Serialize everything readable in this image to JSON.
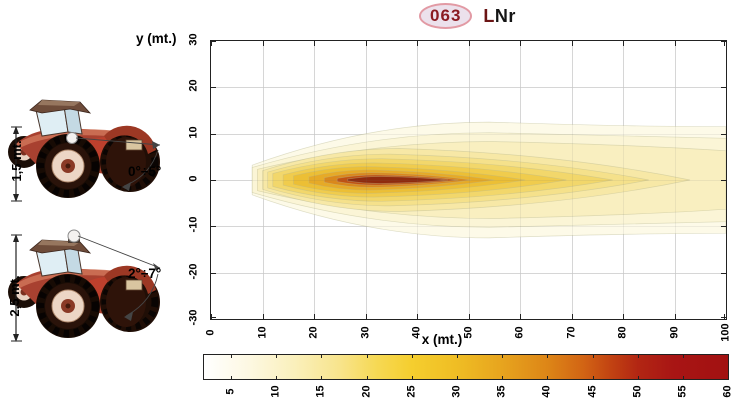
{
  "title": {
    "badge": "063",
    "code_l": "L",
    "code_rest": "Nr"
  },
  "colors": {
    "badge_text": "#8b1b22",
    "badge_bg": "#ece1ec",
    "badge_border": "#e29aa4",
    "grid": "#e3e3e3",
    "axis": "#222222",
    "peak": "#8f2b0e"
  },
  "left_panel": {
    "tractor_top": {
      "height_label": "1,5 mt.",
      "angle_label": "0°÷5°",
      "beacon": false
    },
    "tractor_bottom": {
      "height_label": "2,5 mt.",
      "angle_label": "2°÷7°",
      "beacon": true
    }
  },
  "chart": {
    "xlabel": "x (mt.)",
    "ylabel": "y (mt.)"
  },
  "chart_data": {
    "type": "heatmap",
    "title": "063 LNr",
    "xlabel": "x (mt.)",
    "ylabel": "y (mt.)",
    "xlim": [
      0,
      100
    ],
    "ylim": [
      -30,
      30
    ],
    "x_ticks": [
      0,
      10,
      20,
      30,
      40,
      50,
      60,
      70,
      80,
      90,
      100
    ],
    "y_ticks": [
      30,
      20,
      10,
      0,
      -10,
      -20,
      -30
    ],
    "grid": true,
    "legend_position": "colorbar-bottom",
    "peak": {
      "value_approx": 58,
      "x_range": [
        26,
        46
      ],
      "y": 0
    },
    "contours": [
      {
        "level": 2,
        "x_start": 8,
        "x_end": 100,
        "hw_start": 3.2,
        "hw_max": 12.5,
        "hw_end": 11.5,
        "color": "#fdfae8"
      },
      {
        "level": 5,
        "x_start": 8,
        "x_end": 100,
        "hw_start": 2.7,
        "hw_max": 10.2,
        "hw_end": 9.0,
        "color": "#fbf5d6"
      },
      {
        "level": 8,
        "x_start": 9,
        "x_end": 100,
        "hw_start": 2.3,
        "hw_max": 8.3,
        "hw_end": 6.3,
        "color": "#f9efc0"
      },
      {
        "level": 11,
        "x_start": 10,
        "x_end": 93,
        "hw_start": 2.0,
        "hw_max": 6.8,
        "hw_end": 0,
        "color": "#f7e8a6"
      },
      {
        "level": 14,
        "x_start": 11,
        "x_end": 85,
        "hw_start": 1.7,
        "hw_max": 5.6,
        "hw_end": 0,
        "color": "#f5e18b"
      },
      {
        "level": 18,
        "x_start": 12,
        "x_end": 78,
        "hw_start": 1.4,
        "hw_max": 4.6,
        "hw_end": 0,
        "color": "#f2d76b"
      },
      {
        "level": 22,
        "x_start": 14,
        "x_end": 69,
        "hw_start": 1.1,
        "hw_max": 3.7,
        "hw_end": 0,
        "color": "#f0cc4d"
      },
      {
        "level": 27,
        "x_start": 16,
        "x_end": 61,
        "hw_start": 0.9,
        "hw_max": 2.9,
        "hw_end": 0,
        "color": "#ecbf35"
      },
      {
        "level": 33,
        "x_start": 19,
        "x_end": 55,
        "hw_start": 0.7,
        "hw_max": 2.2,
        "hw_end": 0,
        "color": "#e6aa27"
      },
      {
        "level": 40,
        "x_start": 22,
        "x_end": 50.5,
        "hw_start": 0.5,
        "hw_max": 1.6,
        "hw_end": 0,
        "color": "#da881c"
      },
      {
        "level": 47,
        "x_start": 24.5,
        "x_end": 48,
        "hw_start": 0.35,
        "hw_max": 1.1,
        "hw_end": 0,
        "color": "#c05112"
      },
      {
        "level": 55,
        "x_start": 26.5,
        "x_end": 46,
        "hw_start": 0.2,
        "hw_max": 0.75,
        "hw_end": 0,
        "color": "#8f2b0e"
      }
    ],
    "colorbar": {
      "min": 2,
      "max": 60,
      "ticks": [
        5,
        10,
        15,
        20,
        25,
        30,
        35,
        40,
        45,
        50,
        55,
        60
      ],
      "stops": [
        {
          "v": 2,
          "c": "#ffffff"
        },
        {
          "v": 7,
          "c": "#fdf8e2"
        },
        {
          "v": 12,
          "c": "#faf0bc"
        },
        {
          "v": 17,
          "c": "#f8e48c"
        },
        {
          "v": 21,
          "c": "#f6d955"
        },
        {
          "v": 25,
          "c": "#f5ce2e"
        },
        {
          "v": 30,
          "c": "#efbd24"
        },
        {
          "v": 35,
          "c": "#e7a41e"
        },
        {
          "v": 40,
          "c": "#dd8617"
        },
        {
          "v": 44,
          "c": "#d26414"
        },
        {
          "v": 47,
          "c": "#c24312"
        },
        {
          "v": 50,
          "c": "#b22613"
        },
        {
          "v": 54,
          "c": "#a81514"
        },
        {
          "v": 60,
          "c": "#a21111"
        }
      ]
    }
  }
}
